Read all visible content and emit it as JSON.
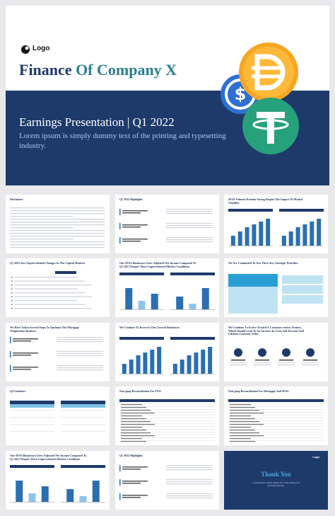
{
  "main": {
    "logo": "Logo",
    "title_part1": "Finance",
    "title_part2": "Of Company X",
    "subtitle": "Earnings Presentation | Q1 2022",
    "description": "Lorem ipsum is simply dummy text of the printing and typesetting industry."
  },
  "slides": [
    {
      "title": "Disclaimer"
    },
    {
      "title": "Q1 2022 Highlights"
    },
    {
      "title": "SFAS Volumes Remain Strong Despite The Impact Of Market Volatility"
    },
    {
      "title": "Q1 2022 Saw Unprecedented Changes In The Capital Markets"
    },
    {
      "title": "Our SFAS Businesses Grew Adjusted Net Income Compared To Q1 2021 Despite These Unprecedented Market Conditions"
    },
    {
      "title": "We Are Committed To Our Three Key Strategic Priorities"
    },
    {
      "title": "We Have Taken Several Steps To Optimize The Mortgage Originations Business"
    },
    {
      "title": "We Continue To Invest In Our Growth Businesses"
    },
    {
      "title": "We Continue To Evolve Toward A Customer-centric Feature, Which Should Lead To An Increase In Cross Sell Revenue And Lifetime Customer Value"
    },
    {
      "title": "Q2 Guidance"
    },
    {
      "title": "Non-gaap Reconciliation For FOA"
    },
    {
      "title": "Non-gaap Reconciliation For Mortgage And SFAS"
    },
    {
      "title": "Our SFAS Businesses Grew Adjusted Net Income Compared To Q1 2021 Despite These Unprecedented Market Conditions"
    },
    {
      "title": "Q1 2022 Highlights"
    },
    {
      "logo": "Logo",
      "title": "Thank You",
      "description": "Lorem ipsum is simply dummy text of the printing and typesetting industry."
    }
  ]
}
